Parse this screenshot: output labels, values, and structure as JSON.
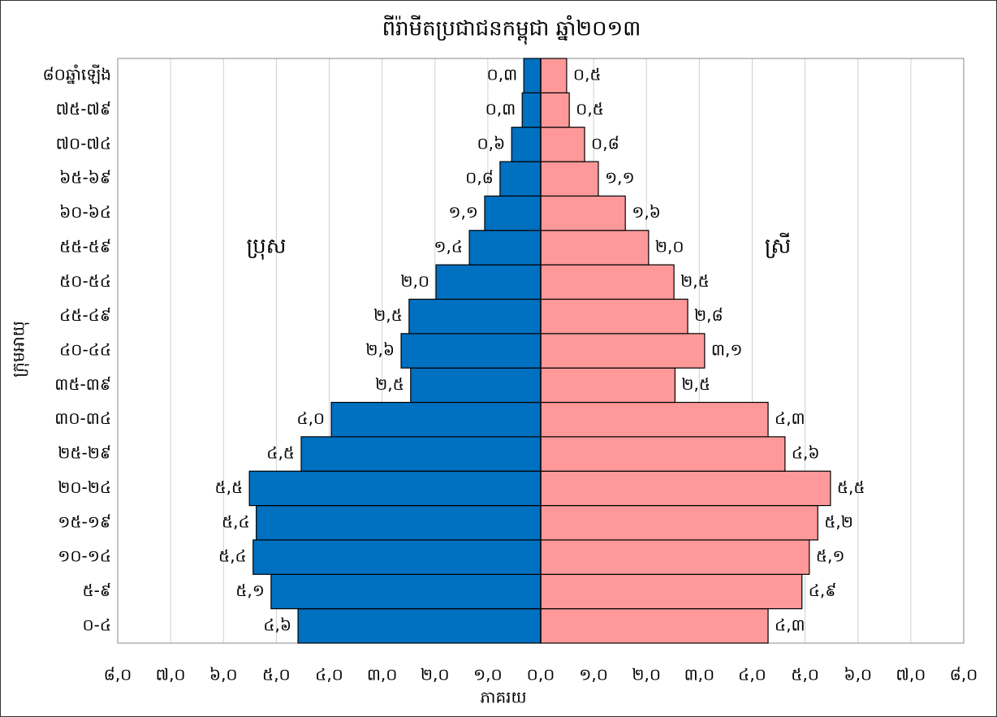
{
  "chart_data": {
    "type": "pyramid",
    "title": "ពីរ៉ាមីតប្រជាជនកម្ពុជា ឆ្នាំ២០១៣",
    "xlabel": "ភាគរយ",
    "ylabel": "ក្រុមអាយុ",
    "categories": [
      "០-៤",
      "៥-៩",
      "១០-១៤",
      "១៥-១៩",
      "២០-២៤",
      "២៥-២៩",
      "៣០-៣៤",
      "៣៥-៣៩",
      "៤០-៤៤",
      "៤៥-៤៩",
      "៥០-៥៤",
      "៥៥-៥៩",
      "៦០-៦៤",
      "៦៥-៦៩",
      "៧០-៧៤",
      "៧៥-៧៩",
      "៨០ឆ្នាំឡើង"
    ],
    "series": [
      {
        "name": "ប្រុស",
        "color": "#0070c0",
        "values": [
          -4.59,
          -5.1,
          -5.44,
          -5.38,
          -5.51,
          -4.53,
          -3.96,
          -2.46,
          -2.64,
          -2.49,
          -1.98,
          -1.35,
          -1.06,
          -0.77,
          -0.55,
          -0.35,
          -0.32
        ],
        "value_labels": [
          "៤,៦",
          "៥,១",
          "៥,៤",
          "៥,៤",
          "៥,៥",
          "៤,៥",
          "៤,០",
          "២,៥",
          "២,៦",
          "២,៥",
          "២,០",
          "១,៤",
          "១,១",
          "០,៨",
          "០,៦",
          "០,៣",
          "០,៣"
        ]
      },
      {
        "name": "ស្រី",
        "color": "#ff9999",
        "values": [
          4.3,
          4.94,
          5.08,
          5.24,
          5.48,
          4.62,
          4.3,
          2.54,
          3.1,
          2.78,
          2.52,
          2.04,
          1.6,
          1.09,
          0.83,
          0.54,
          0.49
        ],
        "value_labels": [
          "៤,៣",
          "៤,៩",
          "៥,១",
          "៥,២",
          "៥,៥",
          "៤,៦",
          "៤,៣",
          "២,៥",
          "៣,១",
          "២,៨",
          "២,៥",
          "២,០",
          "១,៦",
          "១,១",
          "០,៨",
          "០,៥",
          "០,៥"
        ]
      }
    ],
    "xlim": [
      -8,
      8
    ],
    "xticks": [
      {
        "value": -8,
        "label": "៨,០"
      },
      {
        "value": -7,
        "label": "៧,០"
      },
      {
        "value": -6,
        "label": "៦,០"
      },
      {
        "value": -5,
        "label": "៥,០"
      },
      {
        "value": -4,
        "label": "៤,០"
      },
      {
        "value": -3,
        "label": "៣,០"
      },
      {
        "value": -2,
        "label": "២,០"
      },
      {
        "value": -1,
        "label": "១,០"
      },
      {
        "value": 0,
        "label": "០,០"
      },
      {
        "value": 1,
        "label": "១,០"
      },
      {
        "value": 2,
        "label": "២,០"
      },
      {
        "value": 3,
        "label": "៣,០"
      },
      {
        "value": 4,
        "label": "៤,០"
      },
      {
        "value": 5,
        "label": "៥,០"
      },
      {
        "value": 6,
        "label": "៦,០"
      },
      {
        "value": 7,
        "label": "៧,០"
      },
      {
        "value": 8,
        "label": "៨,០"
      }
    ],
    "grid": true
  }
}
